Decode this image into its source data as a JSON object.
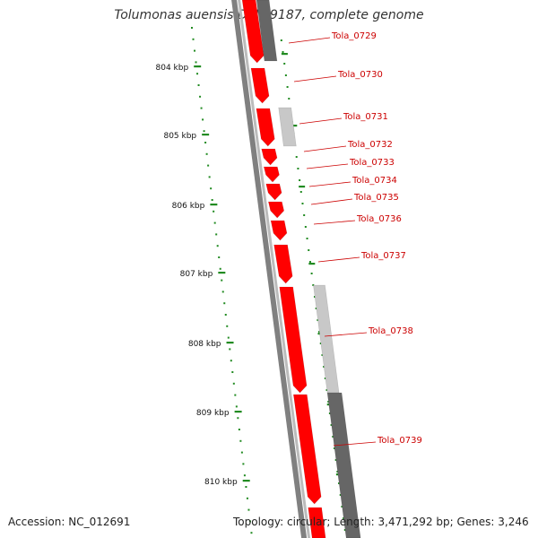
{
  "title": "Tolumonas auensis DSM 9187, complete genome",
  "footer": {
    "accession": "Accession: NC_012691",
    "topology": "Topology: circular; Length: 3,471,292 bp; Genes: 3,246"
  },
  "colors": {
    "gene_forward": "#ff0000",
    "gene_other_dark": "#666666",
    "gene_other_light": "#c8c8c8",
    "backbone": "#808080",
    "gc_skew": "#228b22",
    "label": "#cc0000"
  },
  "tick_labels": [
    "804 kbp",
    "805 kbp",
    "806 kbp",
    "807 kbp",
    "808 kbp",
    "809 kbp",
    "810 kbp"
  ],
  "gene_labels": [
    "Tola_0729",
    "Tola_0730",
    "Tola_0731",
    "Tola_0732",
    "Tola_0733",
    "Tola_0734",
    "Tola_0735",
    "Tola_0736",
    "Tola_0737",
    "Tola_0738",
    "Tola_0739"
  ]
}
